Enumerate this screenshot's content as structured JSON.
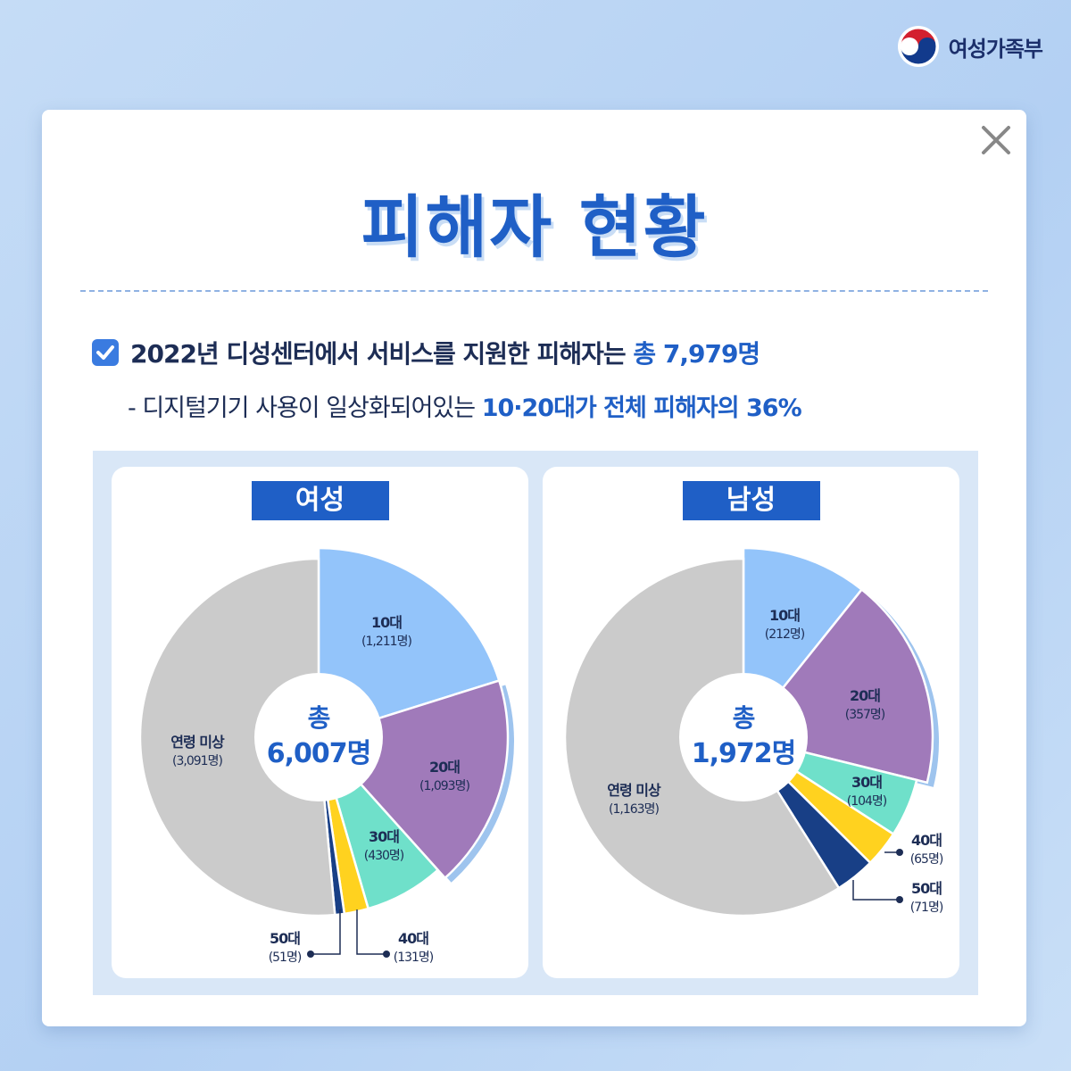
{
  "brand": {
    "name": "여성가족부",
    "logo_icon": "taegeuk-icon"
  },
  "title": "피해자 현황",
  "summary": {
    "line1_prefix": "2022년 디성센터에서 서비스를 지원한 피해자는 ",
    "line1_highlight": "총 7,979명",
    "line2_prefix": "- 디지털기기 사용이 일상화되어있는 ",
    "line2_highlight": "10·20대가 전체 피해자의 36%"
  },
  "colors": {
    "accent": "#1f5fc6",
    "10s": "#93c4fa",
    "20s": "#a07aba",
    "30s": "#6fe0ca",
    "40s": "#ffd21f",
    "50s": "#183f86",
    "unknown": "#cbcbcb"
  },
  "chart_data": [
    {
      "type": "pie",
      "title": "여성",
      "center_label": {
        "top": "총",
        "bottom": "6,007명"
      },
      "slices": [
        {
          "key": "10s",
          "name": "10대",
          "value": 1211,
          "label": "(1,211명)"
        },
        {
          "key": "20s",
          "name": "20대",
          "value": 1093,
          "label": "(1,093명)"
        },
        {
          "key": "30s",
          "name": "30대",
          "value": 430,
          "label": "(430명)"
        },
        {
          "key": "40s",
          "name": "40대",
          "value": 131,
          "label": "(131명)"
        },
        {
          "key": "50s",
          "name": "50대",
          "value": 51,
          "label": "(51명)"
        },
        {
          "key": "unknown",
          "name": "연령 미상",
          "value": 3091,
          "label": "(3,091명)"
        }
      ]
    },
    {
      "type": "pie",
      "title": "남성",
      "center_label": {
        "top": "총",
        "bottom": "1,972명"
      },
      "slices": [
        {
          "key": "10s",
          "name": "10대",
          "value": 212,
          "label": "(212명)"
        },
        {
          "key": "20s",
          "name": "20대",
          "value": 357,
          "label": "(357명)"
        },
        {
          "key": "30s",
          "name": "30대",
          "value": 104,
          "label": "(104명)"
        },
        {
          "key": "40s",
          "name": "40대",
          "value": 65,
          "label": "(65명)"
        },
        {
          "key": "50s",
          "name": "50대",
          "value": 71,
          "label": "(71명)"
        },
        {
          "key": "unknown",
          "name": "연령 미상",
          "value": 1163,
          "label": "(1,163명)"
        }
      ]
    }
  ]
}
